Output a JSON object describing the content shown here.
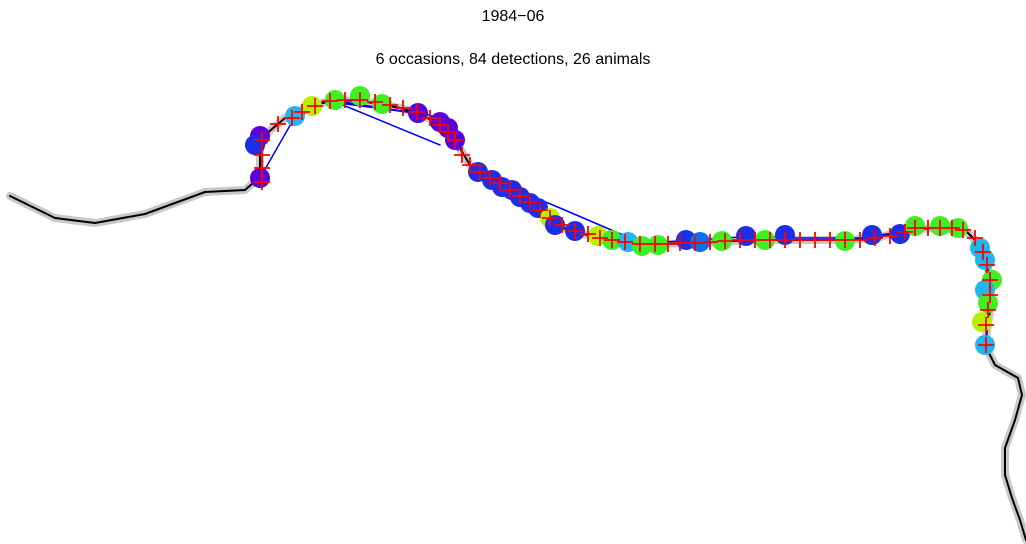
{
  "title": "1984−06",
  "subtitle": "6 occasions, 84 detections, 26 animals",
  "colors": {
    "river_shadow": "#c8c8c8",
    "river": "#000000",
    "detector": "#ff0000",
    "track": "#0000ff",
    "occasion_palette": [
      "#5b00d8",
      "#1c2fe6",
      "#0a6fe8",
      "#1fb8ee",
      "#3ef022",
      "#b4f000"
    ]
  }
}
